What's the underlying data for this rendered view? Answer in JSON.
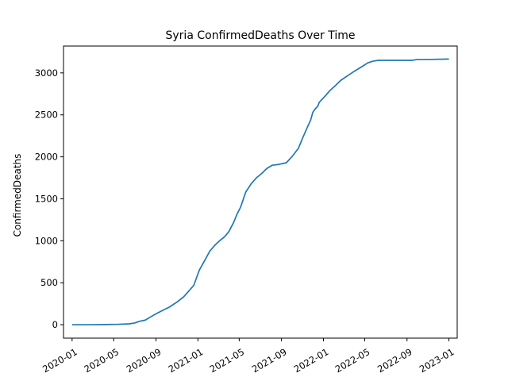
{
  "chart_data": {
    "type": "line",
    "title": "Syria  ConfirmedDeaths Over Time",
    "xlabel": "",
    "ylabel": "ConfirmedDeaths",
    "x_ticks": [
      "2020-01",
      "2020-05",
      "2020-09",
      "2021-01",
      "2021-05",
      "2021-09",
      "2022-01",
      "2022-05",
      "2022-09",
      "2023-01"
    ],
    "y_ticks": [
      0,
      500,
      1000,
      1500,
      2000,
      2500,
      3000
    ],
    "xlim": [
      "2019-12-07",
      "2023-01-25"
    ],
    "ylim": [
      -160,
      3320
    ],
    "grid": false,
    "series": [
      {
        "name": "",
        "color": "#1f77b4",
        "points": [
          [
            "2020-01-01",
            0
          ],
          [
            "2020-03-01",
            0
          ],
          [
            "2020-04-01",
            2
          ],
          [
            "2020-05-15",
            5
          ],
          [
            "2020-06-15",
            10
          ],
          [
            "2020-07-01",
            20
          ],
          [
            "2020-07-15",
            40
          ],
          [
            "2020-08-01",
            55
          ],
          [
            "2020-08-15",
            90
          ],
          [
            "2020-09-01",
            130
          ],
          [
            "2020-09-20",
            170
          ],
          [
            "2020-10-10",
            210
          ],
          [
            "2020-11-01",
            270
          ],
          [
            "2020-11-20",
            330
          ],
          [
            "2020-12-05",
            400
          ],
          [
            "2020-12-20",
            470
          ],
          [
            "2020-12-28",
            560
          ],
          [
            "2021-01-05",
            650
          ],
          [
            "2021-01-20",
            760
          ],
          [
            "2021-02-05",
            880
          ],
          [
            "2021-02-20",
            950
          ],
          [
            "2021-03-05",
            1000
          ],
          [
            "2021-03-20",
            1050
          ],
          [
            "2021-04-01",
            1110
          ],
          [
            "2021-04-15",
            1220
          ],
          [
            "2021-04-25",
            1320
          ],
          [
            "2021-05-05",
            1400
          ],
          [
            "2021-05-20",
            1580
          ],
          [
            "2021-06-05",
            1680
          ],
          [
            "2021-06-20",
            1750
          ],
          [
            "2021-07-05",
            1800
          ],
          [
            "2021-07-20",
            1860
          ],
          [
            "2021-08-05",
            1900
          ],
          [
            "2021-08-25",
            1910
          ],
          [
            "2021-09-15",
            1930
          ],
          [
            "2021-10-01",
            2000
          ],
          [
            "2021-10-20",
            2100
          ],
          [
            "2021-11-01",
            2220
          ],
          [
            "2021-11-15",
            2350
          ],
          [
            "2021-11-25",
            2440
          ],
          [
            "2021-12-01",
            2530
          ],
          [
            "2021-12-10",
            2580
          ],
          [
            "2021-12-15",
            2600
          ],
          [
            "2021-12-20",
            2650
          ],
          [
            "2022-01-05",
            2720
          ],
          [
            "2022-01-20",
            2790
          ],
          [
            "2022-02-05",
            2850
          ],
          [
            "2022-02-20",
            2910
          ],
          [
            "2022-03-10",
            2960
          ],
          [
            "2022-04-01",
            3020
          ],
          [
            "2022-04-25",
            3080
          ],
          [
            "2022-05-10",
            3120
          ],
          [
            "2022-05-25",
            3140
          ],
          [
            "2022-06-10",
            3150
          ],
          [
            "2022-07-01",
            3150
          ],
          [
            "2022-09-15",
            3150
          ],
          [
            "2022-10-01",
            3160
          ],
          [
            "2022-11-01",
            3160
          ],
          [
            "2023-01-01",
            3165
          ]
        ]
      }
    ]
  }
}
